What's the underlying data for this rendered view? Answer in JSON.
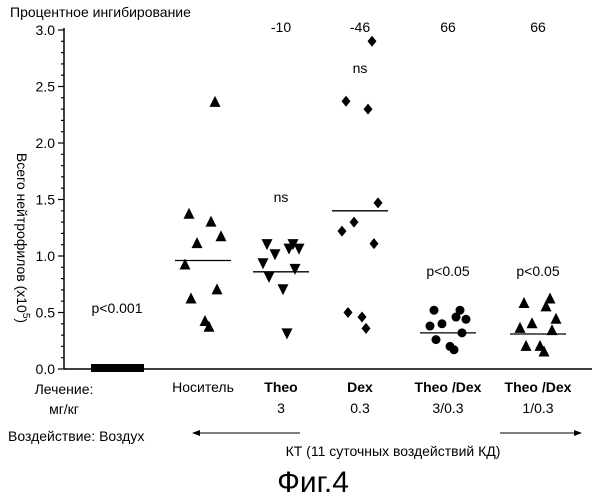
{
  "chart_data": {
    "type": "scatter",
    "header_text": "Процентное ингибирование",
    "ylabel": "Всего нейтрофилов",
    "ylabel_unit": "(x10",
    "ylabel_exp": "5",
    "ylabel_close": ")",
    "ylim": [
      0,
      3.0
    ],
    "yticks": [
      "0.0",
      "0.5",
      "1.0",
      "1.5",
      "2.0",
      "2.5",
      "3.0"
    ],
    "treatment_label_line1": "Лечение:",
    "treatment_label_line2": "мг/кг",
    "groups": [
      {
        "name": "",
        "name_line1": "",
        "name_line2": "",
        "marker": "square",
        "inhibition": "",
        "significance": "p<0.001",
        "mean": 0.0,
        "points": [
          0.0,
          0.0,
          0.0,
          0.0,
          0.0,
          0.0,
          0.0,
          0.0,
          0.0,
          0.0
        ]
      },
      {
        "name": "Носитель",
        "name_line1": "Носитель",
        "name_line2": "",
        "marker": "triangle-up",
        "inhibition": "",
        "significance": "",
        "mean": 0.96,
        "points": [
          2.36,
          1.37,
          1.3,
          1.17,
          1.11,
          0.92,
          0.7,
          0.62,
          0.42,
          0.37
        ]
      },
      {
        "name": "Theo 3",
        "name_line1": "Theo",
        "name_line2": "3",
        "marker": "triangle-down",
        "inhibition": "-10",
        "significance": "ns",
        "mean": 0.86,
        "points": [
          1.11,
          1.11,
          1.07,
          1.07,
          1.02,
          0.94,
          0.89,
          0.82,
          0.71,
          0.32
        ]
      },
      {
        "name": "Dex 0.3",
        "name_line1": "Dex",
        "name_line2": "0.3",
        "marker": "diamond",
        "inhibition": "-46",
        "significance": "ns",
        "mean": 1.4,
        "points": [
          2.9,
          2.37,
          2.3,
          1.47,
          1.3,
          1.22,
          1.11,
          0.5,
          0.46,
          0.36
        ]
      },
      {
        "name": "Theo /Dex 3/0.3",
        "name_line1": "Theo /Dex",
        "name_line2": "3/0.3",
        "marker": "circle",
        "inhibition": "66",
        "significance": "p<0.05",
        "mean": 0.32,
        "points": [
          0.52,
          0.52,
          0.46,
          0.44,
          0.4,
          0.38,
          0.32,
          0.26,
          0.2,
          0.17
        ]
      },
      {
        "name": "Theo /Dex 1/0.3",
        "name_line1": "Theo /Dex",
        "name_line2": "1/0.3",
        "marker": "triangle-up",
        "inhibition": "66",
        "significance": "p<0.05",
        "mean": 0.31,
        "points": [
          0.62,
          0.58,
          0.55,
          0.44,
          0.4,
          0.36,
          0.34,
          0.2,
          0.2,
          0.15
        ]
      }
    ],
    "exposure_label": "Воздействие: Воздух",
    "kt_label": "КТ (11 суточных воздействий КД)",
    "figure_caption": "Фиг.4"
  }
}
